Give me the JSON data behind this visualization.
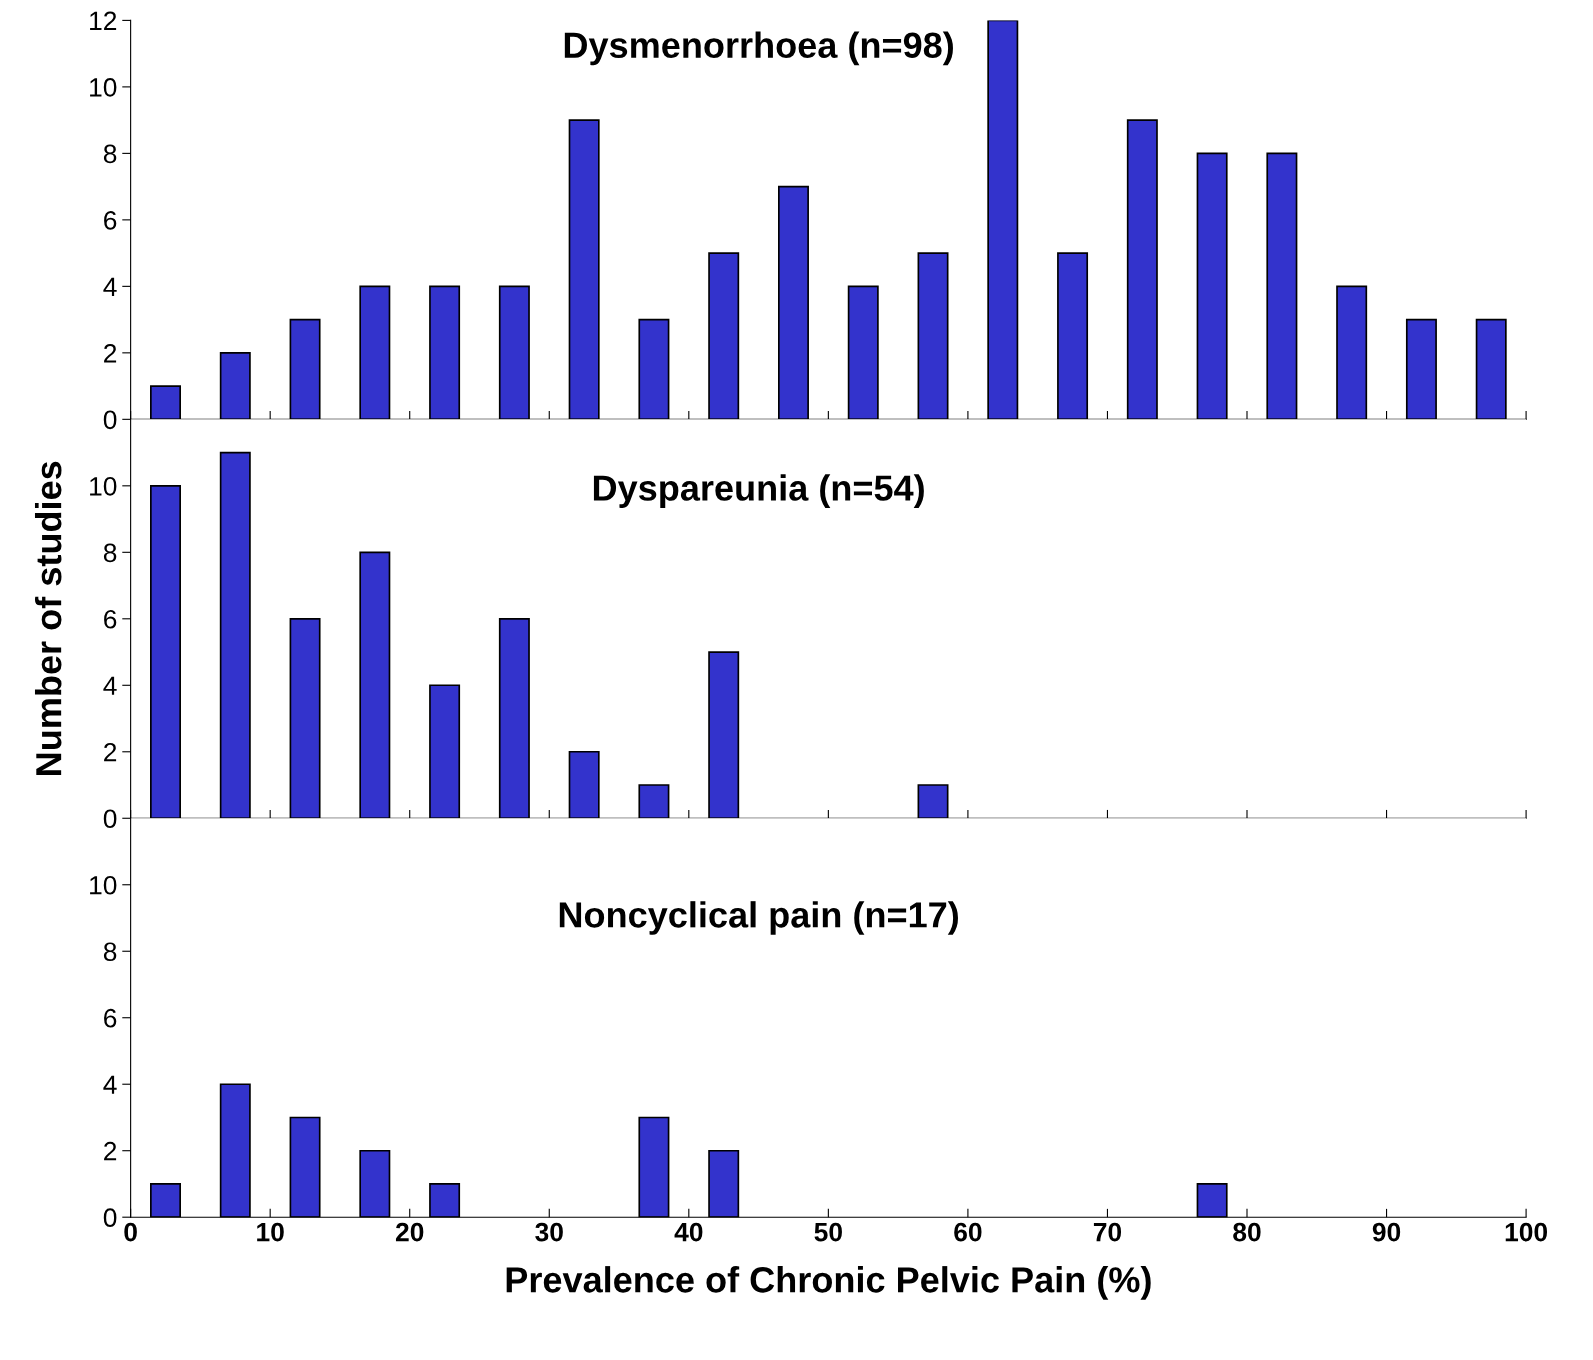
{
  "chart_data": [
    {
      "type": "histogram",
      "title": "Dysmenorrhoea (n=98)",
      "bins": [
        0,
        5,
        10,
        15,
        20,
        25,
        30,
        35,
        40,
        45,
        50,
        55,
        60,
        65,
        70,
        75,
        80,
        85,
        90,
        95,
        100
      ],
      "values": [
        1,
        2,
        3,
        4,
        4,
        4,
        9,
        3,
        5,
        7,
        4,
        5,
        12,
        5,
        9,
        8,
        8,
        4,
        3,
        3
      ],
      "color": "#3333cc",
      "xlim": [
        0,
        100
      ],
      "xticks": [
        0,
        10,
        20,
        30,
        40,
        50,
        60,
        70,
        80,
        90,
        100
      ],
      "ylim": [
        0,
        12
      ],
      "yticks": [
        0,
        2,
        4,
        6,
        8,
        10,
        12
      ],
      "tick_labels": "y",
      "grid": false
    },
    {
      "type": "histogram",
      "title": "Dyspareunia (n=54)",
      "ylabel": "Number of studies",
      "bins": [
        0,
        5,
        10,
        15,
        20,
        25,
        30,
        35,
        40,
        45,
        50,
        55,
        60,
        65,
        70,
        75,
        80,
        85,
        90,
        95,
        100
      ],
      "values": [
        10,
        11,
        6,
        8,
        4,
        6,
        2,
        1,
        5,
        0,
        0,
        1,
        0,
        0,
        0,
        0,
        0,
        0,
        0,
        0
      ],
      "color": "#3333cc",
      "xlim": [
        0,
        100
      ],
      "xticks": [
        0,
        10,
        20,
        30,
        40,
        50,
        60,
        70,
        80,
        90,
        100
      ],
      "ylim": [
        0,
        12
      ],
      "yticks": [
        0,
        2,
        4,
        6,
        8,
        10
      ],
      "tick_labels": "y",
      "grid": false
    },
    {
      "type": "histogram",
      "title": "Noncyclical pain (n=17)",
      "xlabel": "Prevalence of Chronic Pelvic Pain (%)",
      "bins": [
        0,
        5,
        10,
        15,
        20,
        25,
        30,
        35,
        40,
        45,
        50,
        55,
        60,
        65,
        70,
        75,
        80,
        85,
        90,
        95,
        100
      ],
      "values": [
        1,
        4,
        3,
        2,
        1,
        0,
        0,
        3,
        2,
        0,
        0,
        0,
        0,
        0,
        0,
        1,
        0,
        0,
        0,
        0
      ],
      "color": "#3333cc",
      "xlim": [
        0,
        100
      ],
      "xticks": [
        0,
        10,
        20,
        30,
        40,
        50,
        60,
        70,
        80,
        90,
        100
      ],
      "ylim": [
        0,
        12
      ],
      "yticks": [
        0,
        2,
        4,
        6,
        8,
        10
      ],
      "grid": false
    }
  ]
}
